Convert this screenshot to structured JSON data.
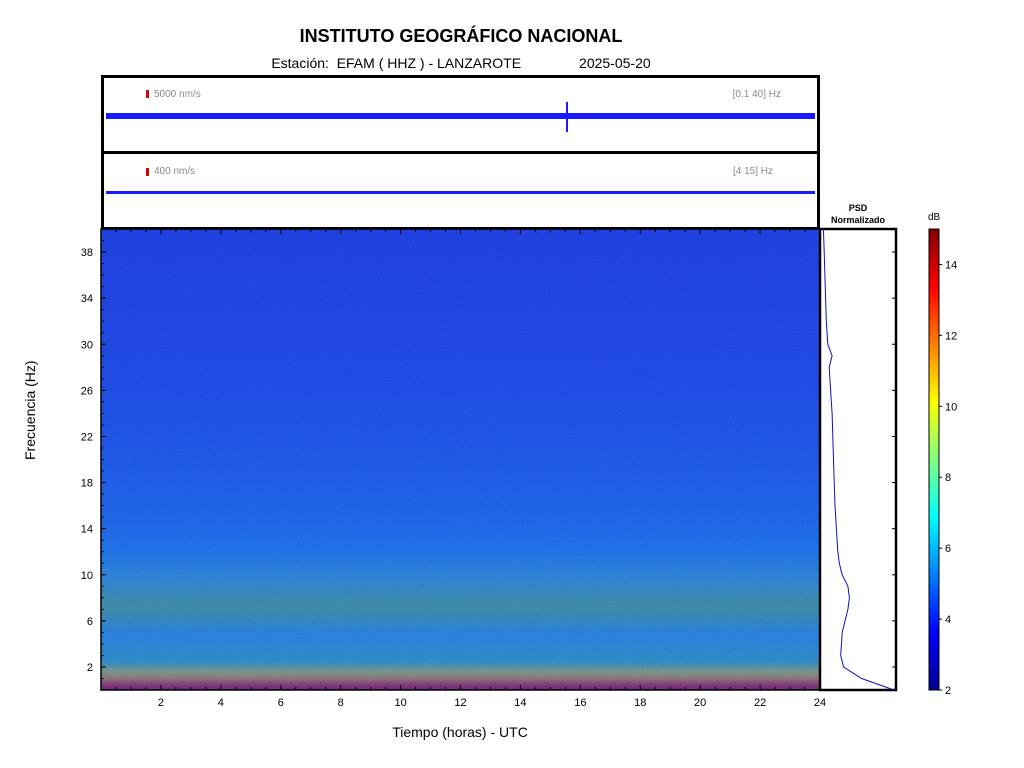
{
  "title": "INSTITUTO GEOGRÁFICO NACIONAL",
  "subtitle": {
    "station": "Estación:  EFAM ( HHZ ) - LANZAROTE",
    "date": "2025-05-20"
  },
  "trace_panels": [
    {
      "scale": "5000 nm/s",
      "band": "[0.1 40] Hz"
    },
    {
      "scale": "400 nm/s",
      "band": "[4 15] Hz"
    }
  ],
  "psd_title": [
    "PSD",
    "Normalizado"
  ],
  "colorbar": {
    "unit": "dB",
    "ticks": [
      2,
      4,
      6,
      8,
      10,
      12,
      14
    ],
    "range": [
      2,
      15
    ]
  },
  "colors": {
    "trace": "#1a1aff",
    "psd_line": "#1010c0",
    "scale_mark": "#e00000"
  },
  "chart_data": {
    "type": "heatmap",
    "title": "INSTITUTO GEOGRÁFICO NACIONAL",
    "xlabel": "Tiempo (horas) - UTC",
    "ylabel": "Frecuencia  (Hz)",
    "x_ticks": [
      2,
      4,
      6,
      8,
      10,
      12,
      14,
      16,
      18,
      20,
      22,
      24
    ],
    "y_ticks": [
      2,
      6,
      10,
      14,
      18,
      22,
      26,
      30,
      34,
      38
    ],
    "xlim": [
      0,
      24
    ],
    "ylim": [
      0,
      40
    ],
    "colorscale_db": [
      2,
      15
    ],
    "psd_profile": {
      "frequency": [
        0,
        1,
        2,
        3,
        5,
        7,
        8,
        9,
        10,
        11,
        12,
        14,
        16,
        18,
        20,
        22,
        24,
        26,
        28,
        29,
        30,
        32,
        34,
        36,
        38,
        40
      ],
      "normalized": [
        1.0,
        0.55,
        0.3,
        0.26,
        0.28,
        0.36,
        0.38,
        0.36,
        0.28,
        0.24,
        0.22,
        0.2,
        0.18,
        0.17,
        0.16,
        0.15,
        0.14,
        0.12,
        0.1,
        0.14,
        0.08,
        0.06,
        0.05,
        0.04,
        0.03,
        0.02
      ]
    }
  }
}
